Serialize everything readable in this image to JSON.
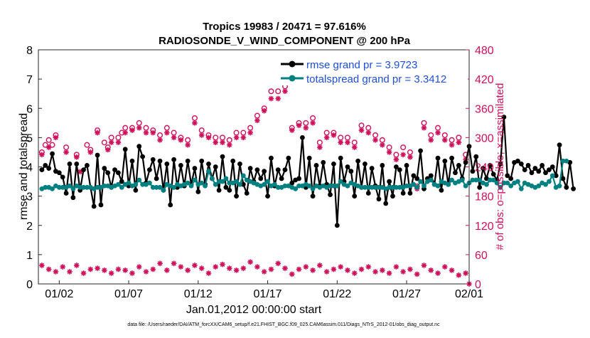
{
  "chart_data": {
    "type": "line",
    "title_line1": "Tropics 19983 / 20471 = 97.616%",
    "title_line2": "RADIOSONDE_V_WIND_COMPONENT @ 200 hPa",
    "ylabel_left": "rmse and totalspread",
    "ylabel_right": "# of obs: o=possible; ×=assimilated",
    "xlabel": "Jan.01,2012 00:00:00 start",
    "footnote": "data file: /Users/raeder/DAI/ATM_forcXX/CAM6_setup/f.e21.FHIST_BGC.f09_025.CAM6assim.011/Diags_NTrS_2012-01/obs_diag_output.nc",
    "xlim": [
      0.5,
      31.5
    ],
    "ylim_left": [
      0,
      8
    ],
    "ylim_right": [
      0,
      480
    ],
    "x_ticks": [
      {
        "value": 2,
        "label": "01/02"
      },
      {
        "value": 7,
        "label": "01/07"
      },
      {
        "value": 12,
        "label": "01/12"
      },
      {
        "value": 17,
        "label": "01/17"
      },
      {
        "value": 22,
        "label": "01/22"
      },
      {
        "value": 27,
        "label": "01/27"
      },
      {
        "value": 32,
        "label": "02/01"
      }
    ],
    "y_ticks_left": [
      "0",
      "1",
      "2",
      "3",
      "4",
      "5",
      "6",
      "7",
      "8"
    ],
    "y_ticks_right": [
      "0",
      "60",
      "120",
      "180",
      "240",
      "300",
      "360",
      "420",
      "480"
    ],
    "legend": {
      "position": "top-right",
      "rmse_label": "rmse grand pr = 3.9723",
      "spread_label": "totalspread grand pr = 3.3412"
    },
    "colors": {
      "rmse": "#000000",
      "spread": "#008080",
      "obs": "#d1105c",
      "legend_text": "#1f4fd6"
    },
    "x_start": 0.75,
    "x_step": 0.25,
    "series": [
      {
        "name": "rmse",
        "values": [
          3.9,
          4.05,
          3.95,
          4.45,
          3.85,
          3.8,
          3.65,
          3.1,
          4.1,
          2.95,
          4.1,
          3.2,
          3.9,
          4.05,
          3.3,
          2.65,
          4.4,
          2.7,
          3.95,
          3.8,
          3.3,
          3.9,
          3.8,
          3.5,
          4.6,
          3.35,
          4.2,
          3.2,
          4.7,
          4.35,
          3.45,
          3.9,
          4.25,
          3.6,
          4.2,
          3.2,
          4.1,
          2.7,
          4.25,
          3.3,
          4.05,
          3.35,
          4.2,
          3.4,
          3.95,
          3.15,
          4.2,
          3.4,
          4.1,
          3.6,
          4.0,
          3.2,
          4.35,
          3.3,
          3.2,
          4.2,
          3.0,
          4.1,
          3.4,
          3.1,
          3.95,
          3.5,
          3.9,
          3.6,
          3.85,
          3.0,
          4.3,
          3.35,
          3.9,
          3.6,
          3.9,
          4.3,
          3.45,
          3.55,
          3.6,
          5.0,
          3.3,
          4.3,
          3.0,
          4.05,
          3.35,
          4.15,
          3.4,
          3.05,
          4.1,
          2.0,
          4.3,
          3.5,
          4.0,
          3.85,
          3.0,
          4.2,
          3.3,
          4.1,
          3.1,
          3.95,
          3.35,
          2.9,
          4.05,
          2.75,
          3.5,
          3.0,
          4.0,
          3.9,
          3.1,
          4.05,
          3.1,
          3.7,
          3.6,
          4.55,
          3.25,
          3.6,
          3.7,
          3.4,
          4.3,
          3.2,
          4.2,
          3.4,
          4.3,
          3.8,
          4.05,
          3.6,
          4.15,
          4.7,
          3.85,
          4.35,
          3.3,
          3.95,
          3.6,
          4.05,
          3.75,
          3.55,
          4.1,
          5.7,
          3.7,
          3.6,
          4.15,
          4.2,
          4.1,
          3.9,
          4.05,
          3.8,
          3.95,
          3.85,
          4.05,
          3.8,
          3.9,
          4.0,
          3.7,
          4.75,
          3.6,
          3.3,
          4.15,
          3.25
        ]
      },
      {
        "name": "totalspread",
        "values": [
          3.25,
          3.3,
          3.3,
          3.25,
          3.35,
          3.3,
          3.3,
          3.3,
          3.35,
          3.25,
          3.35,
          3.3,
          3.3,
          3.3,
          3.3,
          3.25,
          3.3,
          3.3,
          3.35,
          3.35,
          3.3,
          3.35,
          3.4,
          3.3,
          3.4,
          3.45,
          3.35,
          3.4,
          3.55,
          3.4,
          3.4,
          3.45,
          3.3,
          3.3,
          3.3,
          3.2,
          3.4,
          3.35,
          3.3,
          3.4,
          3.35,
          3.4,
          3.45,
          3.35,
          3.55,
          3.4,
          3.45,
          3.35,
          3.85,
          3.6,
          3.4,
          3.5,
          3.5,
          3.6,
          3.45,
          3.45,
          3.5,
          3.4,
          3.7,
          3.55,
          3.5,
          3.45,
          3.4,
          3.35,
          3.4,
          3.5,
          3.35,
          3.4,
          3.3,
          3.3,
          3.35,
          3.35,
          3.3,
          3.25,
          3.35,
          3.35,
          3.4,
          3.35,
          3.25,
          3.35,
          3.3,
          3.35,
          3.3,
          3.35,
          3.35,
          3.35,
          3.5,
          3.4,
          3.35,
          3.45,
          3.4,
          3.35,
          3.3,
          3.3,
          3.3,
          3.3,
          3.3,
          3.3,
          3.3,
          3.25,
          3.3,
          3.3,
          3.3,
          3.3,
          3.3,
          3.35,
          3.35,
          3.4,
          3.3,
          3.5,
          3.35,
          3.5,
          3.55,
          3.4,
          3.35,
          3.5,
          3.45,
          3.4,
          3.55,
          3.45,
          3.5,
          3.55,
          3.35,
          3.45,
          3.55,
          3.55,
          3.55,
          3.45,
          3.4,
          3.55,
          3.55,
          3.45,
          3.3,
          3.45,
          3.45,
          3.35,
          3.45,
          3.5,
          3.25,
          3.45,
          3.4,
          3.35,
          3.3,
          3.35,
          3.45,
          3.4,
          3.5,
          3.7,
          3.3,
          3.35,
          4.2,
          4.2
        ]
      }
    ],
    "obs_possible": [
      {
        "x": 0.75,
        "y": 270
      },
      {
        "x": 1.0,
        "y": 285
      },
      {
        "x": 1.25,
        "y": 295
      },
      {
        "x": 1.5,
        "y": 285
      },
      {
        "x": 1.75,
        "y": 305
      },
      {
        "x": 2.5,
        "y": 280
      },
      {
        "x": 3.25,
        "y": 265
      },
      {
        "x": 4.0,
        "y": 285
      },
      {
        "x": 4.25,
        "y": 275
      },
      {
        "x": 4.75,
        "y": 315
      },
      {
        "x": 5.25,
        "y": 290
      },
      {
        "x": 5.5,
        "y": 280
      },
      {
        "x": 5.75,
        "y": 300
      },
      {
        "x": 6.25,
        "y": 300
      },
      {
        "x": 6.5,
        "y": 310
      },
      {
        "x": 6.75,
        "y": 320
      },
      {
        "x": 7.25,
        "y": 320
      },
      {
        "x": 7.75,
        "y": 330
      },
      {
        "x": 8.25,
        "y": 320
      },
      {
        "x": 8.75,
        "y": 315
      },
      {
        "x": 9.25,
        "y": 305
      },
      {
        "x": 9.75,
        "y": 320
      },
      {
        "x": 10.25,
        "y": 310
      },
      {
        "x": 10.75,
        "y": 300
      },
      {
        "x": 11.25,
        "y": 295
      },
      {
        "x": 11.75,
        "y": 340
      },
      {
        "x": 12.25,
        "y": 315
      },
      {
        "x": 12.75,
        "y": 305
      },
      {
        "x": 13.25,
        "y": 300
      },
      {
        "x": 13.75,
        "y": 300
      },
      {
        "x": 14.25,
        "y": 295
      },
      {
        "x": 14.75,
        "y": 310
      },
      {
        "x": 15.25,
        "y": 310
      },
      {
        "x": 15.75,
        "y": 320
      },
      {
        "x": 16.25,
        "y": 345
      },
      {
        "x": 16.75,
        "y": 360
      },
      {
        "x": 17.25,
        "y": 395
      },
      {
        "x": 17.75,
        "y": 395
      },
      {
        "x": 18.25,
        "y": 405
      },
      {
        "x": 18.75,
        "y": 320
      },
      {
        "x": 19.25,
        "y": 330
      },
      {
        "x": 19.75,
        "y": 330
      },
      {
        "x": 20.25,
        "y": 340
      },
      {
        "x": 20.75,
        "y": 290
      },
      {
        "x": 21.25,
        "y": 310
      },
      {
        "x": 21.75,
        "y": 310
      },
      {
        "x": 22.25,
        "y": 300
      },
      {
        "x": 22.75,
        "y": 300
      },
      {
        "x": 23.25,
        "y": 290
      },
      {
        "x": 23.75,
        "y": 325
      },
      {
        "x": 24.25,
        "y": 320
      },
      {
        "x": 24.75,
        "y": 305
      },
      {
        "x": 25.25,
        "y": 295
      },
      {
        "x": 25.75,
        "y": 280
      },
      {
        "x": 26.25,
        "y": 265
      },
      {
        "x": 26.75,
        "y": 280
      },
      {
        "x": 27.25,
        "y": 270
      },
      {
        "x": 27.75,
        "y": 200
      },
      {
        "x": 28.25,
        "y": 330
      },
      {
        "x": 28.75,
        "y": 305
      },
      {
        "x": 29.25,
        "y": 320
      },
      {
        "x": 29.75,
        "y": 305
      },
      {
        "x": 30.25,
        "y": 295
      },
      {
        "x": 30.75,
        "y": 300
      },
      {
        "x": 31.25,
        "y": 265
      }
    ],
    "obs_assimilated": [
      {
        "x": 0.75,
        "y": 265
      },
      {
        "x": 1.25,
        "y": 280
      },
      {
        "x": 1.75,
        "y": 300
      },
      {
        "x": 2.5,
        "y": 270
      },
      {
        "x": 3.25,
        "y": 260
      },
      {
        "x": 3.5,
        "y": 230
      },
      {
        "x": 4.25,
        "y": 270
      },
      {
        "x": 4.75,
        "y": 310
      },
      {
        "x": 5.5,
        "y": 275
      },
      {
        "x": 5.75,
        "y": 290
      },
      {
        "x": 6.25,
        "y": 290
      },
      {
        "x": 6.75,
        "y": 310
      },
      {
        "x": 7.25,
        "y": 315
      },
      {
        "x": 7.75,
        "y": 320
      },
      {
        "x": 8.25,
        "y": 310
      },
      {
        "x": 8.75,
        "y": 310
      },
      {
        "x": 9.25,
        "y": 295
      },
      {
        "x": 9.75,
        "y": 310
      },
      {
        "x": 10.25,
        "y": 300
      },
      {
        "x": 10.75,
        "y": 295
      },
      {
        "x": 11.25,
        "y": 285
      },
      {
        "x": 11.75,
        "y": 330
      },
      {
        "x": 12.25,
        "y": 305
      },
      {
        "x": 12.75,
        "y": 300
      },
      {
        "x": 13.25,
        "y": 290
      },
      {
        "x": 13.75,
        "y": 290
      },
      {
        "x": 14.25,
        "y": 285
      },
      {
        "x": 14.75,
        "y": 300
      },
      {
        "x": 15.25,
        "y": 300
      },
      {
        "x": 15.75,
        "y": 310
      },
      {
        "x": 16.25,
        "y": 335
      },
      {
        "x": 16.75,
        "y": 355
      },
      {
        "x": 17.25,
        "y": 380
      },
      {
        "x": 17.75,
        "y": 380
      },
      {
        "x": 18.25,
        "y": 395
      },
      {
        "x": 18.75,
        "y": 315
      },
      {
        "x": 19.25,
        "y": 325
      },
      {
        "x": 19.75,
        "y": 320
      },
      {
        "x": 20.25,
        "y": 330
      },
      {
        "x": 20.75,
        "y": 280
      },
      {
        "x": 21.25,
        "y": 300
      },
      {
        "x": 21.75,
        "y": 305
      },
      {
        "x": 22.25,
        "y": 290
      },
      {
        "x": 22.75,
        "y": 290
      },
      {
        "x": 23.25,
        "y": 280
      },
      {
        "x": 23.75,
        "y": 315
      },
      {
        "x": 24.25,
        "y": 310
      },
      {
        "x": 24.75,
        "y": 295
      },
      {
        "x": 25.25,
        "y": 285
      },
      {
        "x": 25.75,
        "y": 270
      },
      {
        "x": 26.25,
        "y": 255
      },
      {
        "x": 26.75,
        "y": 265
      },
      {
        "x": 27.25,
        "y": 260
      },
      {
        "x": 27.75,
        "y": 195
      },
      {
        "x": 28.25,
        "y": 320
      },
      {
        "x": 28.75,
        "y": 295
      },
      {
        "x": 29.25,
        "y": 310
      },
      {
        "x": 29.75,
        "y": 295
      },
      {
        "x": 30.25,
        "y": 285
      },
      {
        "x": 30.75,
        "y": 290
      },
      {
        "x": 31.25,
        "y": 255
      },
      {
        "x": 0.75,
        "y": 38
      },
      {
        "x": 1.25,
        "y": 30
      },
      {
        "x": 1.75,
        "y": 25
      },
      {
        "x": 2.25,
        "y": 35
      },
      {
        "x": 2.75,
        "y": 25
      },
      {
        "x": 3.25,
        "y": 38
      },
      {
        "x": 3.75,
        "y": 22
      },
      {
        "x": 4.25,
        "y": 30
      },
      {
        "x": 4.75,
        "y": 32
      },
      {
        "x": 5.25,
        "y": 28
      },
      {
        "x": 5.75,
        "y": 22
      },
      {
        "x": 6.25,
        "y": 30
      },
      {
        "x": 6.75,
        "y": 28
      },
      {
        "x": 7.25,
        "y": 22
      },
      {
        "x": 7.75,
        "y": 35
      },
      {
        "x": 8.25,
        "y": 25
      },
      {
        "x": 8.75,
        "y": 30
      },
      {
        "x": 9.25,
        "y": 42
      },
      {
        "x": 9.75,
        "y": 28
      },
      {
        "x": 10.25,
        "y": 42
      },
      {
        "x": 10.75,
        "y": 35
      },
      {
        "x": 11.25,
        "y": 28
      },
      {
        "x": 11.75,
        "y": 38
      },
      {
        "x": 12.25,
        "y": 32
      },
      {
        "x": 12.75,
        "y": 22
      },
      {
        "x": 13.25,
        "y": 35
      },
      {
        "x": 13.75,
        "y": 40
      },
      {
        "x": 14.25,
        "y": 32
      },
      {
        "x": 14.75,
        "y": 28
      },
      {
        "x": 15.25,
        "y": 32
      },
      {
        "x": 15.75,
        "y": 45
      },
      {
        "x": 16.25,
        "y": 35
      },
      {
        "x": 16.75,
        "y": 25
      },
      {
        "x": 17.25,
        "y": 30
      },
      {
        "x": 17.75,
        "y": 42
      },
      {
        "x": 18.25,
        "y": 32
      },
      {
        "x": 18.75,
        "y": 20
      },
      {
        "x": 19.25,
        "y": 30
      },
      {
        "x": 19.75,
        "y": 35
      },
      {
        "x": 20.25,
        "y": 28
      },
      {
        "x": 20.75,
        "y": 38
      },
      {
        "x": 21.25,
        "y": 25
      },
      {
        "x": 21.75,
        "y": 30
      },
      {
        "x": 22.25,
        "y": 35
      },
      {
        "x": 22.75,
        "y": 28
      },
      {
        "x": 23.25,
        "y": 22
      },
      {
        "x": 23.75,
        "y": 30
      },
      {
        "x": 24.25,
        "y": 35
      },
      {
        "x": 24.75,
        "y": 25
      },
      {
        "x": 25.25,
        "y": 28
      },
      {
        "x": 25.75,
        "y": 22
      },
      {
        "x": 26.25,
        "y": 35
      },
      {
        "x": 26.75,
        "y": 25
      },
      {
        "x": 27.25,
        "y": 30
      },
      {
        "x": 27.75,
        "y": 20
      },
      {
        "x": 28.25,
        "y": 38
      },
      {
        "x": 28.75,
        "y": 28
      },
      {
        "x": 29.25,
        "y": 22
      },
      {
        "x": 29.75,
        "y": 35
      },
      {
        "x": 30.25,
        "y": 28
      },
      {
        "x": 30.75,
        "y": 18
      },
      {
        "x": 31.25,
        "y": 22
      },
      {
        "x": 31.5,
        "y": 0
      }
    ]
  }
}
